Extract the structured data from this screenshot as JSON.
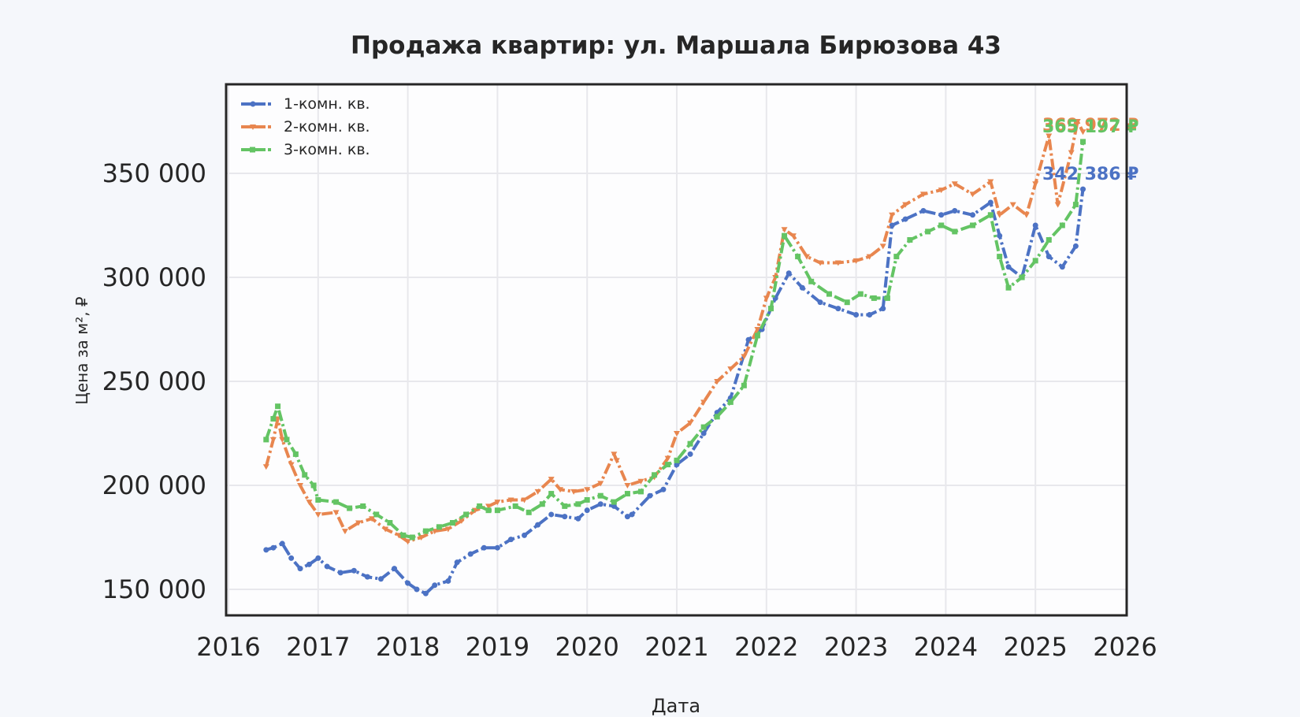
{
  "chart_data": {
    "type": "line",
    "title": "Продажа квартир: ул. Маршала Бирюзова 43",
    "xlabel": "Дата",
    "ylabel": "Цена за м², ₽",
    "xlim": [
      2016,
      2026
    ],
    "ylim": [
      137000,
      393000
    ],
    "x_ticks": [
      "2016",
      "2017",
      "2018",
      "2019",
      "2020",
      "2021",
      "2022",
      "2023",
      "2024",
      "2025",
      "2026"
    ],
    "y_ticks": [
      "150 000",
      "200 000",
      "250 000",
      "300 000",
      "350 000"
    ],
    "y_tick_values": [
      150000,
      200000,
      250000,
      300000,
      350000
    ],
    "grid": true,
    "legend_position": "upper left",
    "series": [
      {
        "name": "1-комн. кв.",
        "color": "#4c72c4",
        "marker": "circle",
        "linestyle": "dash-dot",
        "x": [
          2016.42,
          2016.5,
          2016.6,
          2016.7,
          2016.8,
          2016.9,
          2017.0,
          2017.1,
          2017.25,
          2017.4,
          2017.55,
          2017.7,
          2017.85,
          2018.0,
          2018.1,
          2018.2,
          2018.3,
          2018.45,
          2018.55,
          2018.7,
          2018.85,
          2019.0,
          2019.15,
          2019.3,
          2019.45,
          2019.6,
          2019.75,
          2019.9,
          2020.0,
          2020.15,
          2020.3,
          2020.45,
          2020.5,
          2020.7,
          2020.85,
          2021.0,
          2021.15,
          2021.3,
          2021.45,
          2021.6,
          2021.8,
          2021.95,
          2022.1,
          2022.25,
          2022.4,
          2022.6,
          2022.8,
          2023.0,
          2023.15,
          2023.3,
          2023.4,
          2023.55,
          2023.75,
          2023.95,
          2024.1,
          2024.3,
          2024.5,
          2024.6,
          2024.7,
          2024.85,
          2025.0,
          2025.15,
          2025.3,
          2025.45,
          2025.53
        ],
        "values": [
          169000,
          170000,
          172000,
          165000,
          160000,
          162000,
          165000,
          161000,
          158000,
          159000,
          156000,
          155000,
          160000,
          153000,
          150000,
          148000,
          152000,
          154000,
          163000,
          167000,
          170000,
          170000,
          174000,
          176000,
          181000,
          186000,
          185000,
          184000,
          188000,
          191000,
          190000,
          185000,
          186000,
          195000,
          198000,
          210000,
          215000,
          225000,
          235000,
          242000,
          270000,
          275000,
          290000,
          302000,
          295000,
          288000,
          285000,
          282000,
          282000,
          285000,
          325000,
          328000,
          332000,
          330000,
          332000,
          330000,
          336000,
          320000,
          305000,
          300000,
          325000,
          310000,
          305000,
          315000,
          342386
        ]
      },
      {
        "name": "2-комн. кв.",
        "color": "#e8864f",
        "marker": "triangle-down",
        "linestyle": "dash-dot",
        "x": [
          2016.42,
          2016.5,
          2016.55,
          2016.6,
          2016.7,
          2016.8,
          2016.9,
          2017.0,
          2017.2,
          2017.3,
          2017.45,
          2017.6,
          2017.75,
          2017.9,
          2018.0,
          2018.15,
          2018.3,
          2018.45,
          2018.6,
          2018.75,
          2018.9,
          2019.0,
          2019.15,
          2019.3,
          2019.45,
          2019.6,
          2019.7,
          2019.85,
          2020.0,
          2020.15,
          2020.3,
          2020.33,
          2020.45,
          2020.6,
          2020.75,
          2020.9,
          2021.0,
          2021.15,
          2021.3,
          2021.45,
          2021.6,
          2021.75,
          2021.9,
          2022.0,
          2022.1,
          2022.2,
          2022.3,
          2022.45,
          2022.6,
          2022.8,
          2023.0,
          2023.15,
          2023.3,
          2023.4,
          2023.55,
          2023.75,
          2023.95,
          2024.1,
          2024.3,
          2024.5,
          2024.6,
          2024.75,
          2024.9,
          2025.0,
          2025.15,
          2025.25,
          2025.4,
          2025.47,
          2025.53
        ],
        "values": [
          209000,
          222000,
          232000,
          222000,
          210000,
          200000,
          192000,
          186000,
          187000,
          178000,
          182000,
          184000,
          179000,
          176000,
          173000,
          175000,
          178000,
          179000,
          183000,
          188000,
          190000,
          192000,
          193000,
          193000,
          197000,
          203000,
          198000,
          197000,
          198000,
          201000,
          215000,
          212000,
          200000,
          202000,
          204000,
          213000,
          225000,
          230000,
          240000,
          250000,
          256000,
          262000,
          275000,
          290000,
          300000,
          323000,
          320000,
          310000,
          307000,
          307000,
          308000,
          310000,
          315000,
          330000,
          335000,
          340000,
          342000,
          345000,
          340000,
          346000,
          330000,
          335000,
          330000,
          345000,
          368000,
          335000,
          360000,
          375000,
          369972
        ]
      },
      {
        "name": "3-комн. кв.",
        "color": "#64c464",
        "marker": "square",
        "linestyle": "dash-dot",
        "x": [
          2016.42,
          2016.5,
          2016.55,
          2016.65,
          2016.75,
          2016.85,
          2016.95,
          2017.0,
          2017.2,
          2017.35,
          2017.5,
          2017.65,
          2017.8,
          2017.95,
          2018.05,
          2018.2,
          2018.35,
          2018.5,
          2018.65,
          2018.8,
          2018.9,
          2019.0,
          2019.2,
          2019.35,
          2019.5,
          2019.6,
          2019.75,
          2019.9,
          2020.0,
          2020.15,
          2020.3,
          2020.45,
          2020.6,
          2020.75,
          2020.9,
          2021.0,
          2021.15,
          2021.3,
          2021.45,
          2021.6,
          2021.75,
          2021.9,
          2022.05,
          2022.2,
          2022.35,
          2022.5,
          2022.7,
          2022.9,
          2023.05,
          2023.2,
          2023.35,
          2023.45,
          2023.6,
          2023.8,
          2023.95,
          2024.1,
          2024.3,
          2024.5,
          2024.6,
          2024.7,
          2024.85,
          2025.0,
          2025.15,
          2025.3,
          2025.45,
          2025.53
        ],
        "values": [
          222000,
          232000,
          238000,
          222000,
          215000,
          205000,
          200000,
          193000,
          192000,
          189000,
          190000,
          186000,
          182000,
          176000,
          175000,
          178000,
          180000,
          182000,
          186000,
          190000,
          188000,
          188000,
          190000,
          187000,
          191000,
          196000,
          190000,
          191000,
          193000,
          195000,
          192000,
          196000,
          197000,
          205000,
          210000,
          212000,
          220000,
          228000,
          233000,
          240000,
          248000,
          272000,
          285000,
          320000,
          310000,
          298000,
          292000,
          288000,
          292000,
          290000,
          290000,
          310000,
          318000,
          322000,
          325000,
          322000,
          325000,
          330000,
          310000,
          295000,
          300000,
          308000,
          318000,
          325000,
          335000,
          365197
        ]
      }
    ],
    "annotations": [
      {
        "text": "369 972 ₽",
        "series": "2-комн. кв.",
        "color": "#e8864f",
        "value": 369972
      },
      {
        "text": "365 197 ₽",
        "series": "3-комн. кв.",
        "color": "#64c464",
        "value": 365197
      },
      {
        "text": "342 386 ₽",
        "series": "1-комн. кв.",
        "color": "#4c72c4",
        "value": 342386
      }
    ]
  }
}
